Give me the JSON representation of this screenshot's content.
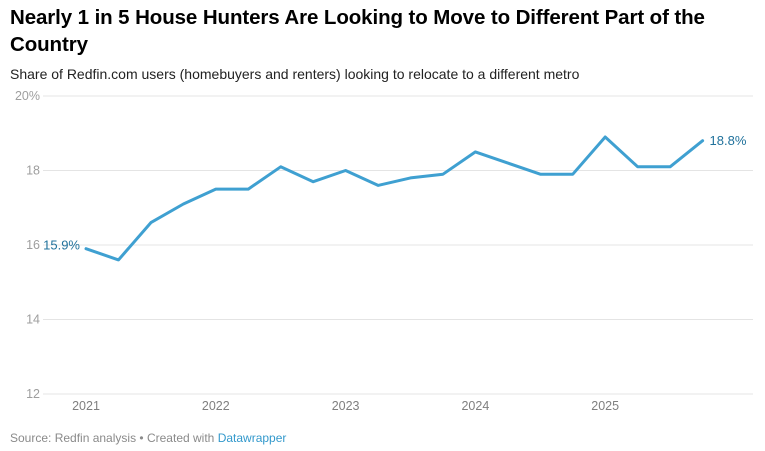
{
  "header": {
    "title": "Nearly 1 in 5 House Hunters Are Looking to Move to Different Part of the Country",
    "subtitle": "Share of Redfin.com users (homebuyers and renters) looking to relocate to a different metro"
  },
  "chart_data": {
    "type": "line",
    "title": "Nearly 1 in 5 House Hunters Are Looking to Move to Different Part of the Country",
    "subtitle": "Share of Redfin.com users (homebuyers and renters) looking to relocate to a different metro",
    "x": [
      "2021 Q1",
      "2021 Q2",
      "2021 Q3",
      "2021 Q4",
      "2022 Q1",
      "2022 Q2",
      "2022 Q3",
      "2022 Q4",
      "2023 Q1",
      "2023 Q2",
      "2023 Q3",
      "2023 Q4",
      "2024 Q1",
      "2024 Q2",
      "2024 Q3",
      "2024 Q4",
      "2025 Q1",
      "2025 Q2",
      "2025 Q3",
      "2025 Q4"
    ],
    "values": [
      15.9,
      15.6,
      16.6,
      17.1,
      17.5,
      17.5,
      18.1,
      17.7,
      18.0,
      17.6,
      17.8,
      17.9,
      18.5,
      18.2,
      17.9,
      17.9,
      18.9,
      18.1,
      18.1,
      18.8
    ],
    "ylim": [
      12,
      20
    ],
    "grid": "horizontal",
    "legend_position": "none",
    "yticks": [
      {
        "value": 20,
        "label": "20%"
      },
      {
        "value": 18,
        "label": "18"
      },
      {
        "value": 16,
        "label": "16"
      },
      {
        "value": 14,
        "label": "14"
      },
      {
        "value": 12,
        "label": "12"
      }
    ],
    "xticks": [
      "2021",
      "2022",
      "2023",
      "2024",
      "2025"
    ],
    "point_labels": {
      "first": "15.9%",
      "last": "18.8%"
    },
    "line_color": "#3fa0d1",
    "value_label_color": "#21729c",
    "grid_color": "#e4e4e4",
    "ytick_color": "#9e9e9e",
    "xtick_color": "#7f7f7f"
  },
  "footer": {
    "source_text": "Source: Redfin analysis",
    "separator": "•",
    "created_with": "Created with",
    "link_label": "Datawrapper"
  }
}
